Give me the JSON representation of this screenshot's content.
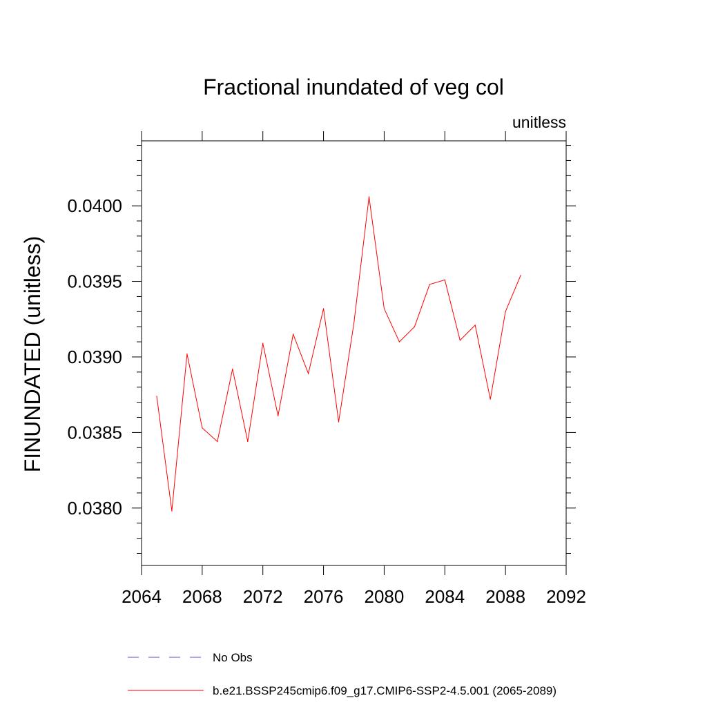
{
  "chart_data": {
    "type": "line",
    "title": "Fractional inundated of veg col",
    "units_label": "unitless",
    "ylabel": "FINUNDATED  (unitless)",
    "xlabel": "",
    "xlim": [
      2064,
      2092
    ],
    "ylim": [
      0.03762,
      0.04043
    ],
    "x_ticks": [
      "2064",
      "2068",
      "2072",
      "2076",
      "2080",
      "2084",
      "2088",
      "2092"
    ],
    "y_ticks": [
      "0.0380",
      "0.0385",
      "0.0390",
      "0.0395",
      "0.0400"
    ],
    "grid": false,
    "legend_placement": "bottom",
    "series": [
      {
        "name": "b.e21.BSSP245cmip6.f09_g17.CMIP6-SSP2-4.5.001 (2065-2089)",
        "color": "#ff0000",
        "style": "solid",
        "x": [
          2065,
          2066,
          2067,
          2068,
          2069,
          2070,
          2071,
          2072,
          2073,
          2074,
          2075,
          2076,
          2077,
          2078,
          2079,
          2080,
          2081,
          2082,
          2083,
          2084,
          2085,
          2086,
          2087,
          2088,
          2089
        ],
        "y": [
          0.03874,
          0.03798,
          0.03902,
          0.03853,
          0.03844,
          0.03892,
          0.03844,
          0.03909,
          0.03861,
          0.03915,
          0.03889,
          0.03932,
          0.03857,
          0.03922,
          0.04006,
          0.03932,
          0.0391,
          0.0392,
          0.03948,
          0.03951,
          0.03911,
          0.03921,
          0.03872,
          0.0393,
          0.03954
        ]
      }
    ],
    "legend": [
      {
        "label": "No Obs",
        "color": "#5a4fcf",
        "style": "dashed"
      },
      {
        "label": "b.e21.BSSP245cmip6.f09_g17.CMIP6-SSP2-4.5.001 (2065-2089)",
        "color": "#ff0000",
        "style": "solid"
      }
    ]
  }
}
